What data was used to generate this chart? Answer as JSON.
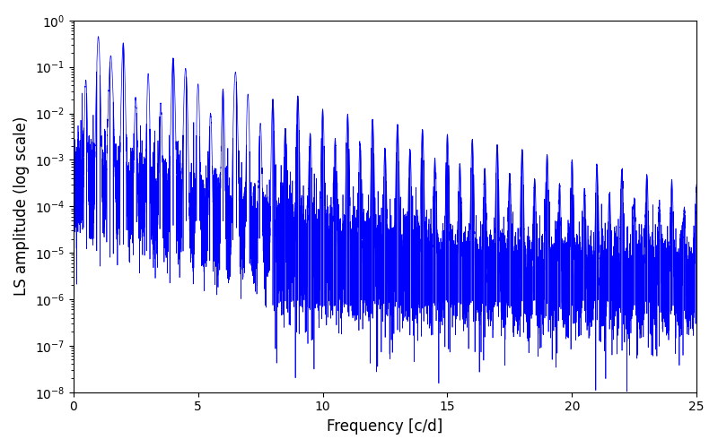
{
  "title": "",
  "xlabel": "Frequency [c/d]",
  "ylabel": "LS amplitude (log scale)",
  "xlim": [
    0,
    25
  ],
  "ylim": [
    1e-08,
    1.0
  ],
  "line_color": "#0000ff",
  "line_width": 0.5,
  "figsize": [
    8.0,
    5.0
  ],
  "dpi": 100,
  "yscale": "log",
  "seed": 42,
  "freq_max": 25.0,
  "background_color": "#ffffff"
}
